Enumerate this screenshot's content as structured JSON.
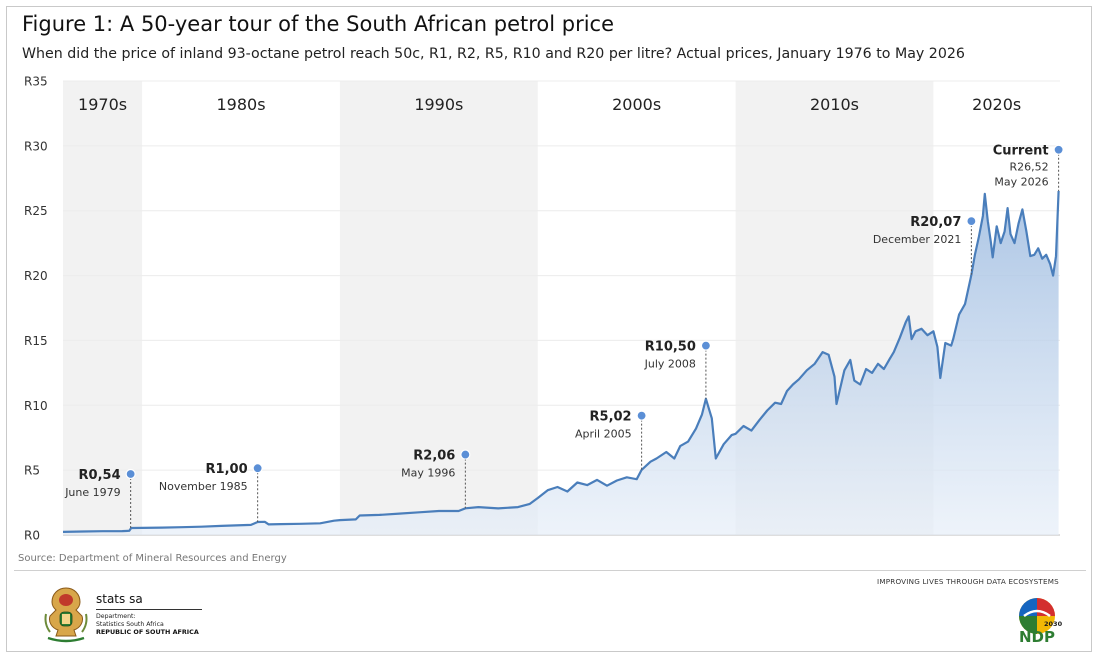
{
  "title": "Figure 1: A 50-year tour of the South African petrol price",
  "subtitle": "When did the price of inland 93-octane petrol reach 50c, R1, R2, R5, R10 and R20 per litre? Actual prices, January 1976 to May 2026",
  "source": "Source: Department of Mineral Resources and Energy",
  "tagline": "IMPROVING LIVES THROUGH DATA ECOSYSTEMS",
  "brand": {
    "name": "stats sa",
    "dept_line1": "Department:",
    "dept_line2": "Statistics South Africa",
    "country": "REPUBLIC OF SOUTH AFRICA",
    "ndp_text": "NDP",
    "ndp_year": "2030"
  },
  "colors": {
    "line": "#4a7ebb",
    "marker": "#5b8fd6",
    "band": "#f2f2f2"
  },
  "chart_data": {
    "type": "area",
    "x_unit": "year (decimal)",
    "xlim": [
      1976.0,
      2026.4
    ],
    "ylim": [
      0,
      35
    ],
    "y_ticks": [
      {
        "value": 0,
        "label": "R0"
      },
      {
        "value": 5,
        "label": "R5"
      },
      {
        "value": 10,
        "label": "R10"
      },
      {
        "value": 15,
        "label": "R15"
      },
      {
        "value": 20,
        "label": "R20"
      },
      {
        "value": 25,
        "label": "R25"
      },
      {
        "value": 30,
        "label": "R30"
      },
      {
        "value": 35,
        "label": "R35"
      }
    ],
    "decades": [
      {
        "label": "1970s",
        "start": 1976,
        "end": 1980,
        "shaded": true
      },
      {
        "label": "1980s",
        "start": 1980,
        "end": 1990,
        "shaded": false
      },
      {
        "label": "1990s",
        "start": 1990,
        "end": 2000,
        "shaded": true
      },
      {
        "label": "2000s",
        "start": 2000,
        "end": 2010,
        "shaded": false
      },
      {
        "label": "2010s",
        "start": 2010,
        "end": 2020,
        "shaded": true
      },
      {
        "label": "2020s",
        "start": 2020,
        "end": 2026.4,
        "shaded": false
      }
    ],
    "series": [
      {
        "points": [
          [
            1976.0,
            0.24
          ],
          [
            1977.0,
            0.27
          ],
          [
            1978.0,
            0.29
          ],
          [
            1979.0,
            0.3
          ],
          [
            1979.35,
            0.32
          ],
          [
            1979.45,
            0.54
          ],
          [
            1980.0,
            0.55
          ],
          [
            1981.0,
            0.57
          ],
          [
            1982.0,
            0.6
          ],
          [
            1983.0,
            0.64
          ],
          [
            1984.0,
            0.7
          ],
          [
            1985.5,
            0.78
          ],
          [
            1985.84,
            1.0
          ],
          [
            1986.2,
            1.02
          ],
          [
            1986.4,
            0.82
          ],
          [
            1987.0,
            0.84
          ],
          [
            1988.0,
            0.86
          ],
          [
            1989.0,
            0.9
          ],
          [
            1989.7,
            1.1
          ],
          [
            1990.0,
            1.15
          ],
          [
            1990.8,
            1.2
          ],
          [
            1991.0,
            1.5
          ],
          [
            1992.0,
            1.55
          ],
          [
            1993.0,
            1.65
          ],
          [
            1994.0,
            1.75
          ],
          [
            1995.0,
            1.85
          ],
          [
            1996.0,
            1.85
          ],
          [
            1996.34,
            2.06
          ],
          [
            1997.0,
            2.15
          ],
          [
            1998.0,
            2.05
          ],
          [
            1999.0,
            2.15
          ],
          [
            1999.6,
            2.4
          ],
          [
            2000.0,
            2.85
          ],
          [
            2000.5,
            3.45
          ],
          [
            2001.0,
            3.7
          ],
          [
            2001.5,
            3.35
          ],
          [
            2002.0,
            4.05
          ],
          [
            2002.5,
            3.85
          ],
          [
            2003.0,
            4.25
          ],
          [
            2003.5,
            3.8
          ],
          [
            2004.0,
            4.2
          ],
          [
            2004.5,
            4.45
          ],
          [
            2005.0,
            4.3
          ],
          [
            2005.25,
            5.02
          ],
          [
            2005.7,
            5.65
          ],
          [
            2006.0,
            5.9
          ],
          [
            2006.5,
            6.4
          ],
          [
            2006.9,
            5.9
          ],
          [
            2007.2,
            6.85
          ],
          [
            2007.6,
            7.2
          ],
          [
            2008.0,
            8.2
          ],
          [
            2008.3,
            9.3
          ],
          [
            2008.5,
            10.5
          ],
          [
            2008.8,
            9.0
          ],
          [
            2009.0,
            5.9
          ],
          [
            2009.4,
            7.0
          ],
          [
            2009.8,
            7.7
          ],
          [
            2010.0,
            7.8
          ],
          [
            2010.4,
            8.4
          ],
          [
            2010.8,
            8.05
          ],
          [
            2011.2,
            8.85
          ],
          [
            2011.6,
            9.6
          ],
          [
            2012.0,
            10.2
          ],
          [
            2012.3,
            10.1
          ],
          [
            2012.6,
            11.1
          ],
          [
            2012.9,
            11.6
          ],
          [
            2013.2,
            12.0
          ],
          [
            2013.6,
            12.7
          ],
          [
            2014.0,
            13.2
          ],
          [
            2014.4,
            14.1
          ],
          [
            2014.7,
            13.9
          ],
          [
            2015.0,
            12.2
          ],
          [
            2015.1,
            10.1
          ],
          [
            2015.5,
            12.7
          ],
          [
            2015.8,
            13.5
          ],
          [
            2016.0,
            11.9
          ],
          [
            2016.3,
            11.6
          ],
          [
            2016.6,
            12.8
          ],
          [
            2016.9,
            12.5
          ],
          [
            2017.2,
            13.2
          ],
          [
            2017.5,
            12.8
          ],
          [
            2017.8,
            13.6
          ],
          [
            2018.0,
            14.1
          ],
          [
            2018.3,
            15.2
          ],
          [
            2018.6,
            16.4
          ],
          [
            2018.75,
            16.85
          ],
          [
            2018.9,
            15.1
          ],
          [
            2019.1,
            15.7
          ],
          [
            2019.4,
            15.9
          ],
          [
            2019.7,
            15.4
          ],
          [
            2020.0,
            15.7
          ],
          [
            2020.2,
            14.5
          ],
          [
            2020.35,
            12.1
          ],
          [
            2020.6,
            14.8
          ],
          [
            2020.9,
            14.6
          ],
          [
            2021.0,
            15.1
          ],
          [
            2021.3,
            17.0
          ],
          [
            2021.6,
            17.8
          ],
          [
            2021.92,
            20.07
          ],
          [
            2022.1,
            21.6
          ],
          [
            2022.3,
            23.0
          ],
          [
            2022.5,
            24.6
          ],
          [
            2022.6,
            26.3
          ],
          [
            2022.75,
            24.2
          ],
          [
            2022.9,
            22.6
          ],
          [
            2023.0,
            21.4
          ],
          [
            2023.2,
            23.8
          ],
          [
            2023.4,
            22.5
          ],
          [
            2023.6,
            23.4
          ],
          [
            2023.75,
            25.2
          ],
          [
            2023.9,
            23.2
          ],
          [
            2024.1,
            22.5
          ],
          [
            2024.3,
            24.0
          ],
          [
            2024.5,
            25.1
          ],
          [
            2024.7,
            23.4
          ],
          [
            2024.9,
            21.5
          ],
          [
            2025.1,
            21.6
          ],
          [
            2025.3,
            22.1
          ],
          [
            2025.5,
            21.3
          ],
          [
            2025.7,
            21.6
          ],
          [
            2025.9,
            20.9
          ],
          [
            2026.05,
            20.0
          ],
          [
            2026.2,
            21.5
          ],
          [
            2026.33,
            26.52
          ]
        ]
      }
    ],
    "annotations": [
      {
        "value_label": "R0,54",
        "date": "June 1979",
        "x": 1979.42,
        "y": 0.54,
        "marker_y": 4.7,
        "side": "left"
      },
      {
        "value_label": "R1,00",
        "date": "November 1985",
        "x": 1985.84,
        "y": 1.0,
        "marker_y": 5.15,
        "side": "left"
      },
      {
        "value_label": "R2,06",
        "date": "May 1996",
        "x": 1996.34,
        "y": 2.06,
        "marker_y": 6.2,
        "side": "left"
      },
      {
        "value_label": "R5,02",
        "date": "April 2005",
        "x": 2005.25,
        "y": 5.02,
        "marker_y": 9.2,
        "side": "left"
      },
      {
        "value_label": "R10,50",
        "date": "July 2008",
        "x": 2008.5,
        "y": 10.5,
        "marker_y": 14.6,
        "side": "left"
      },
      {
        "value_label": "R20,07",
        "date": "December 2021",
        "x": 2021.92,
        "y": 20.07,
        "marker_y": 24.2,
        "side": "left"
      },
      {
        "value_label": "Current",
        "price": "R26,52",
        "date": "May 2026",
        "x": 2026.33,
        "y": 26.52,
        "marker_y": 29.7,
        "side": "left"
      }
    ]
  }
}
